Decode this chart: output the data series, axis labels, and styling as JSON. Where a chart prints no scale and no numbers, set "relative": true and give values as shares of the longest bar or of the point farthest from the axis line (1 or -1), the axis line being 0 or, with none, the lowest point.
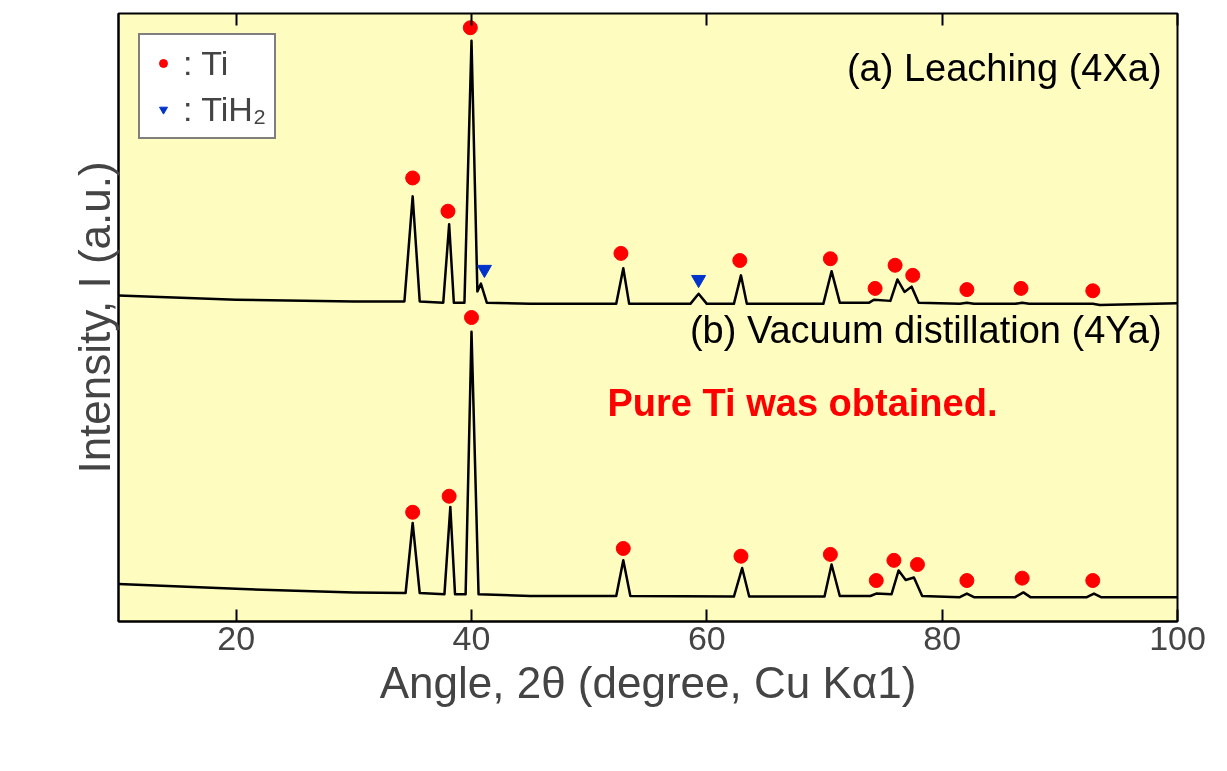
{
  "chart_data": {
    "type": "line",
    "relative": true,
    "xlabel": "Angle, 2θ (degree, Cu Kα1)",
    "ylabel": "Intensity, I (a.u.)",
    "xlim": [
      10,
      100
    ],
    "xticks": [
      20,
      40,
      60,
      80,
      100
    ],
    "tick_labels": "x",
    "grid": false,
    "legend": "top left",
    "annotations": [
      "(a) Leaching (4Xa)",
      "(b) Vacuum distillation (4Ya)",
      "Pure Ti was obtained."
    ],
    "series": [
      {
        "color": "#000000",
        "x": [
          10,
          20,
          30,
          34.3,
          35.0,
          35.6,
          37.6,
          38.1,
          38.5,
          39.4,
          40.0,
          40.5,
          40.8,
          41.3,
          45,
          52.3,
          52.9,
          53.4,
          58.6,
          59.3,
          60.0,
          62.3,
          62.9,
          63.4,
          69.9,
          70.6,
          71.3,
          73.8,
          74.2,
          75.6,
          76.2,
          76.8,
          77.4,
          78.0,
          81.5,
          82.1,
          82.7,
          86.2,
          86.8,
          87.4,
          92.2,
          92.8,
          93.4,
          100
        ],
        "values": [
          0.549,
          0.542,
          0.539,
          0.539,
          0.716,
          0.539,
          0.537,
          0.669,
          0.537,
          0.537,
          0.978,
          0.556,
          0.569,
          0.537,
          0.535,
          0.535,
          0.595,
          0.535,
          0.535,
          0.552,
          0.535,
          0.535,
          0.583,
          0.535,
          0.535,
          0.59,
          0.537,
          0.537,
          0.542,
          0.54,
          0.576,
          0.555,
          0.564,
          0.537,
          0.535,
          0.537,
          0.535,
          0.535,
          0.537,
          0.535,
          0.535,
          0.535,
          0.533,
          0.536
        ]
      },
      {
        "color": "#000000",
        "x": [
          10,
          20,
          30,
          34.4,
          35.0,
          35.6,
          37.7,
          38.2,
          38.6,
          39.5,
          40.0,
          40.6,
          45,
          52.3,
          52.9,
          53.5,
          62.3,
          63.0,
          63.6,
          70.0,
          70.6,
          71.3,
          73.9,
          74.4,
          75.7,
          76.3,
          76.9,
          77.6,
          78.3,
          81.5,
          82.1,
          82.7,
          86.2,
          86.9,
          87.5,
          92.3,
          92.9,
          93.5,
          100
        ],
        "values": [
          0.063,
          0.055,
          0.049,
          0.048,
          0.166,
          0.048,
          0.046,
          0.193,
          0.046,
          0.046,
          0.488,
          0.046,
          0.043,
          0.043,
          0.103,
          0.043,
          0.042,
          0.09,
          0.042,
          0.042,
          0.096,
          0.043,
          0.043,
          0.047,
          0.046,
          0.086,
          0.07,
          0.074,
          0.043,
          0.041,
          0.047,
          0.041,
          0.041,
          0.049,
          0.041,
          0.041,
          0.047,
          0.041,
          0.041
        ]
      },
      {
        "type": "scatter",
        "name": ": Ti",
        "color": "#ff0000",
        "marker": "circle",
        "x": [
          35.0,
          38.0,
          39.9,
          52.7,
          62.8,
          70.5,
          74.3,
          76.0,
          77.5,
          82.1,
          86.7,
          92.8,
          35.0,
          38.1,
          40.0,
          52.9,
          62.9,
          70.5,
          74.4,
          75.9,
          77.9,
          82.1,
          86.8,
          92.8
        ],
        "values": [
          0.747,
          0.691,
          1.0,
          0.62,
          0.608,
          0.611,
          0.561,
          0.6,
          0.583,
          0.559,
          0.561,
          0.557,
          0.184,
          0.211,
          0.512,
          0.123,
          0.11,
          0.113,
          0.069,
          0.103,
          0.096,
          0.069,
          0.073,
          0.069
        ]
      },
      {
        "type": "scatter",
        "name": ": TiH₂",
        "color": "#0033cc",
        "marker": "triangle",
        "x": [
          41.1,
          59.3
        ],
        "values": [
          0.593,
          0.576
        ]
      }
    ]
  }
}
